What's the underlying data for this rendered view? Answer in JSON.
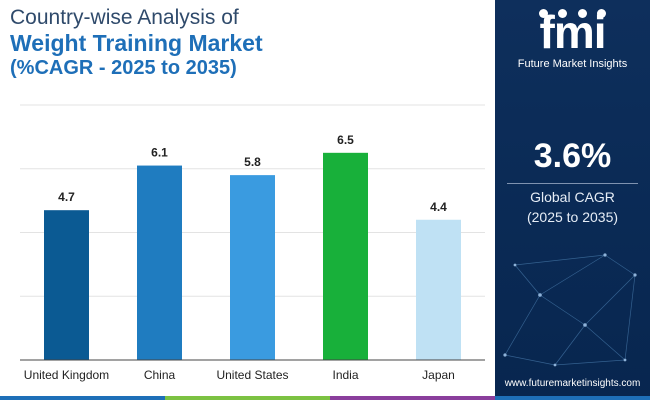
{
  "title": {
    "line1": "Country-wise Analysis of",
    "line2": "Weight Training Market",
    "line3": "(%CAGR - 2025 to 2035)"
  },
  "chart_data": {
    "type": "bar",
    "categories": [
      "United Kingdom",
      "China",
      "United States",
      "India",
      "Japan"
    ],
    "values": [
      4.7,
      6.1,
      5.8,
      6.5,
      4.4
    ],
    "colors": [
      "#0b5a93",
      "#1f7cc0",
      "#3a9be0",
      "#18b03a",
      "#bfe1f4"
    ],
    "title": "",
    "xlabel": "",
    "ylabel": "",
    "ylim": [
      0,
      8
    ],
    "grid": true,
    "legend": "none"
  },
  "side_panel": {
    "logo_text": "fmi",
    "logo_subtitle": "Future Market Insights",
    "cagr_value": "3.6%",
    "cagr_label_line1": "Global CAGR",
    "cagr_label_line2": "(2025 to 2035)",
    "website": "www.futuremarketinsights.com"
  },
  "colors": {
    "panel_bg": "#0b2b57",
    "title_dark": "#2f4a6b",
    "title_blue": "#1e6fb8",
    "strip": [
      "#1e6fb8",
      "#7cc242",
      "#8a3e9c",
      "#1e6fb8"
    ]
  }
}
